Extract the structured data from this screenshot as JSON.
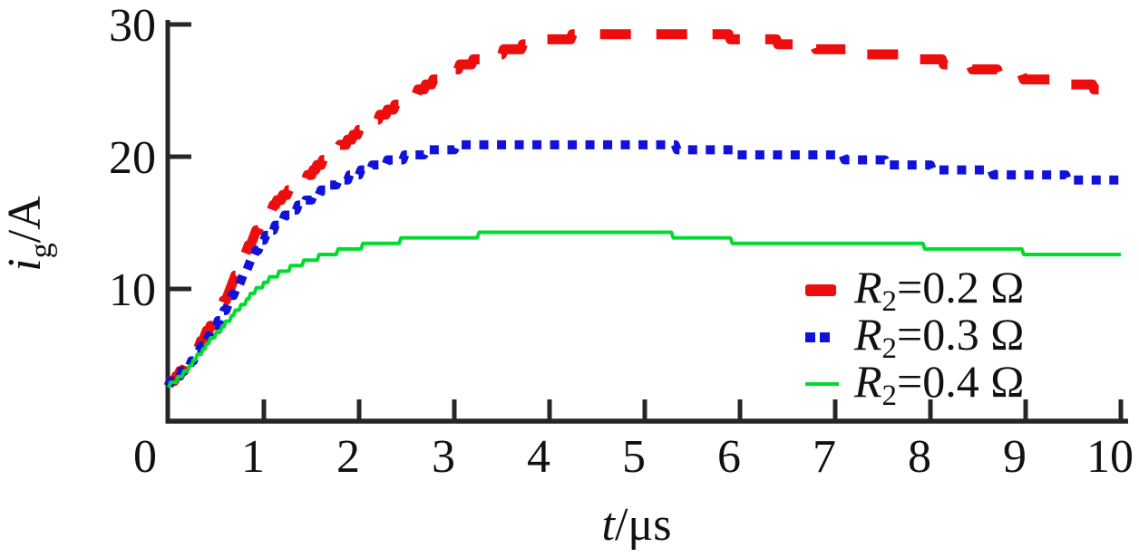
{
  "figure": {
    "background": "#ffffff",
    "axis_color": "#262626",
    "text_color": "#111111"
  },
  "y_axis": {
    "label_var": "i",
    "label_sub": "g",
    "label_rest": "/A",
    "ticks": [
      10,
      20,
      30
    ]
  },
  "x_axis": {
    "label_var": "t",
    "label_rest": "/μs",
    "ticks": [
      0,
      1,
      2,
      3,
      4,
      5,
      6,
      7,
      8,
      9,
      10
    ]
  },
  "chart_data": {
    "type": "line",
    "title": "",
    "xlabel": "t/μs",
    "ylabel": "i_g/A",
    "xlim": [
      0,
      10
    ],
    "ylim": [
      0,
      31
    ],
    "grid": false,
    "legend_position": "inside lower right",
    "x": [
      0,
      0.5,
      1,
      1.5,
      2,
      2.5,
      3,
      3.5,
      4,
      4.5,
      5,
      5.5,
      6,
      6.5,
      7,
      7.5,
      8,
      8.5,
      9,
      9.5,
      10
    ],
    "series": [
      {
        "name": "R2=0.2 Ω",
        "legend": {
          "var": "R",
          "sub": "2",
          "rest": "=0.2 Ω"
        },
        "color": "#ee0d0d",
        "line_style": "dashed",
        "values": [
          2.8,
          7.9,
          15.3,
          18.8,
          21.9,
          24.4,
          26.6,
          27.9,
          28.8,
          29.3,
          29.4,
          29.3,
          29.0,
          28.6,
          28.1,
          27.7,
          27.3,
          26.7,
          26.0,
          25.5,
          25.0
        ]
      },
      {
        "name": "R2=0.3 Ω",
        "legend": {
          "var": "R",
          "sub": "2",
          "rest": "=0.3 Ω"
        },
        "color": "#1111d9",
        "line_style": "dotted",
        "values": [
          2.8,
          7.3,
          13.7,
          16.9,
          18.8,
          20.0,
          20.7,
          20.9,
          21.0,
          21.0,
          20.9,
          20.6,
          20.3,
          20.1,
          20.0,
          19.6,
          19.2,
          18.9,
          18.6,
          18.4,
          18.2
        ]
      },
      {
        "name": "R2=0.4 Ω",
        "legend": {
          "var": "R",
          "sub": "2",
          "rest": "=0.4 Ω"
        },
        "color": "#00dc2e",
        "line_style": "solid",
        "values": [
          2.7,
          6.6,
          10.4,
          12.2,
          13.2,
          13.7,
          14.0,
          14.1,
          14.1,
          14.1,
          14.1,
          14.0,
          13.6,
          13.6,
          13.6,
          13.4,
          13.2,
          13.0,
          12.8,
          12.6,
          12.5
        ]
      }
    ]
  }
}
